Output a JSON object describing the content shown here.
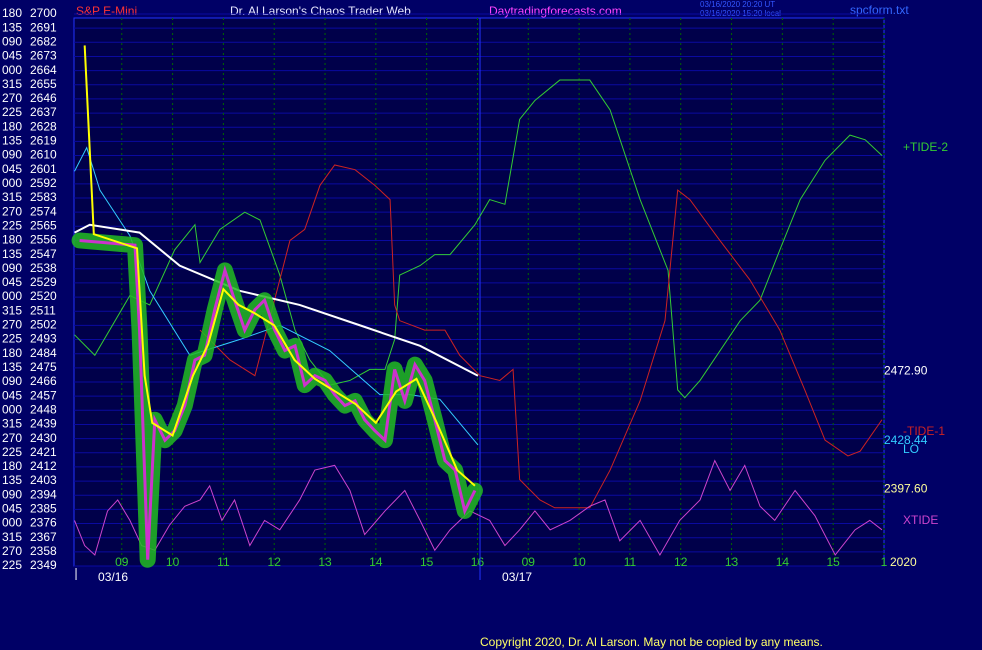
{
  "chart_data": {
    "type": "line",
    "title": "Dr. Al Larson's Chaos Trader Web",
    "symbol": "S&P E-Mini",
    "site": "Daytradingforecasts.com",
    "timestamp_ut": "03/16/2020 20:20 UT",
    "timestamp_local": "03/16/2020 15:20 local",
    "file": "spcform.txt",
    "copyright": "Copyright 2020, Dr. Al Larson. May not be copied by any means.",
    "year": "2020",
    "grid": true,
    "ylim": [
      2349,
      2700
    ],
    "yticks": [
      2700,
      2691,
      2682,
      2673,
      2664,
      2655,
      2646,
      2637,
      2628,
      2619,
      2610,
      2601,
      2592,
      2583,
      2574,
      2565,
      2556,
      2547,
      2538,
      2529,
      2520,
      2511,
      2502,
      2493,
      2484,
      2475,
      2466,
      2457,
      2448,
      2439,
      2430,
      2421,
      2412,
      2403,
      2394,
      2385,
      2376,
      2367,
      2358,
      2349
    ],
    "y_angle_labels": [
      "180",
      "135",
      "090",
      "045",
      "000",
      "315",
      "270",
      "225",
      "180",
      "135",
      "090",
      "045",
      "000",
      "315",
      "270",
      "225",
      "180",
      "135",
      "090",
      "045",
      "000",
      "315",
      "270",
      "225",
      "180",
      "135",
      "090",
      "045",
      "000",
      "315",
      "270",
      "225",
      "180",
      "135",
      "090",
      "045",
      "000",
      "315",
      "270",
      "225"
    ],
    "xlim": [
      -0.94,
      15.0
    ],
    "xticks": [
      {
        "value": 0,
        "label": "09"
      },
      {
        "value": 1,
        "label": "10"
      },
      {
        "value": 2,
        "label": "11"
      },
      {
        "value": 3,
        "label": "12"
      },
      {
        "value": 4,
        "label": "13"
      },
      {
        "value": 5,
        "label": "14"
      },
      {
        "value": 6,
        "label": "15"
      },
      {
        "value": 7,
        "label": "16"
      },
      {
        "value": 8,
        "label": "09"
      },
      {
        "value": 9,
        "label": "10"
      },
      {
        "value": 10,
        "label": "11"
      },
      {
        "value": 11,
        "label": "12"
      },
      {
        "value": 12,
        "label": "13"
      },
      {
        "value": 13,
        "label": "14"
      },
      {
        "value": 14,
        "label": "15"
      },
      {
        "value": 15,
        "label": "1"
      }
    ],
    "date_markers": [
      {
        "value": -0.9,
        "label": "03/16"
      },
      {
        "value": 7.05,
        "label": "03/17"
      }
    ],
    "series": [
      {
        "name": "+TIDE-2",
        "color": "#33cc33",
        "x": [
          -0.93,
          -0.53,
          0.16,
          0.55,
          1.04,
          1.44,
          1.54,
          1.93,
          2.42,
          2.72,
          3.11,
          3.41,
          3.7,
          4.09,
          4.49,
          4.88,
          5.18,
          5.37,
          5.47,
          5.87,
          6.16,
          6.46,
          6.95,
          7.24,
          7.54,
          7.83,
          8.13,
          8.62,
          9.21,
          9.61,
          10.2,
          10.75,
          10.94,
          11.08,
          11.38,
          12.17,
          12.56,
          12.95,
          13.35,
          13.84,
          14.33,
          14.63,
          14.96
        ],
        "values": [
          2496,
          2483,
          2521,
          2515,
          2550,
          2566,
          2542,
          2563,
          2574,
          2569,
          2534,
          2499,
          2480,
          2464,
          2467,
          2474,
          2474,
          2493,
          2534,
          2540,
          2547,
          2547,
          2566,
          2582,
          2579,
          2633,
          2645,
          2658,
          2658,
          2639,
          2582,
          2537,
          2461,
          2456,
          2467,
          2505,
          2518,
          2550,
          2582,
          2607,
          2623,
          2620,
          2610
        ]
      },
      {
        "name": "-TIDE-1",
        "color": "#cc2222",
        "x": [
          1.54,
          2.13,
          2.62,
          3.31,
          3.6,
          3.9,
          4.19,
          4.59,
          4.98,
          5.28,
          5.37,
          5.47,
          5.96,
          6.36,
          6.65,
          7.05,
          7.44,
          7.7,
          7.83,
          8.23,
          8.52,
          9.21,
          9.61,
          10.2,
          10.69,
          10.94,
          11.18,
          11.77,
          12.36,
          12.95,
          13.44,
          13.84,
          14.29,
          14.53,
          14.96
        ],
        "values": [
          2499,
          2480,
          2470,
          2556,
          2563,
          2591,
          2604,
          2601,
          2591,
          2582,
          2515,
          2505,
          2499,
          2499,
          2483,
          2470,
          2467,
          2474,
          2404,
          2391,
          2386,
          2386,
          2410,
          2454,
          2505,
          2588,
          2582,
          2556,
          2531,
          2499,
          2461,
          2429,
          2419,
          2422,
          2442
        ]
      },
      {
        "name": "XTIDE",
        "color": "#cc44cc",
        "x": [
          -0.93,
          -0.73,
          -0.53,
          -0.28,
          -0.08,
          0.16,
          0.39,
          0.65,
          0.94,
          1.24,
          1.54,
          1.73,
          1.97,
          2.22,
          2.52,
          2.81,
          3.11,
          3.5,
          3.8,
          4.19,
          4.49,
          4.78,
          5.18,
          5.57,
          5.87,
          6.16,
          6.46,
          6.85,
          7.24,
          7.54,
          7.83,
          8.13,
          8.43,
          8.82,
          9.21,
          9.51,
          9.8,
          10.2,
          10.59,
          10.98,
          11.38,
          11.67,
          11.97,
          12.26,
          12.56,
          12.85,
          13.25,
          13.64,
          14.04,
          14.43,
          14.72,
          14.96
        ],
        "values": [
          2378,
          2362,
          2356,
          2384,
          2391,
          2378,
          2362,
          2359,
          2375,
          2387,
          2391,
          2400,
          2378,
          2391,
          2362,
          2378,
          2372,
          2391,
          2410,
          2413,
          2397,
          2369,
          2384,
          2397,
          2378,
          2359,
          2372,
          2384,
          2378,
          2362,
          2372,
          2384,
          2372,
          2378,
          2387,
          2391,
          2365,
          2378,
          2356,
          2378,
          2391,
          2416,
          2397,
          2413,
          2387,
          2378,
          2397,
          2381,
          2356,
          2372,
          2378,
          2372
        ]
      },
      {
        "name": "LO",
        "color": "#33ccff",
        "end_label": {
          "value": 2428.44,
          "label": "2428.44"
        },
        "x": [
          -0.93,
          -0.69,
          -0.43,
          0.16,
          0.55,
          1.34,
          2.32,
          3.11,
          4.09,
          5.08,
          5.67,
          6.26,
          7.01
        ],
        "values": [
          2600,
          2615,
          2588,
          2559,
          2524,
          2483,
          2493,
          2502,
          2486,
          2458,
          2458,
          2455,
          2426
        ]
      },
      {
        "color": "#ffffff",
        "end_label": {
          "value": 2472.9,
          "label": "2472.90"
        },
        "x": [
          -0.93,
          -0.63,
          0.35,
          1.14,
          2.32,
          3.5,
          4.69,
          5.87,
          7.01
        ],
        "values": [
          2561,
          2566,
          2561,
          2540,
          2524,
          2515,
          2502,
          2489,
          2470
        ]
      },
      {
        "color": "#22bb22",
        "glow": true,
        "x": [
          -0.83,
          0.26,
          0.35,
          0.51,
          0.65,
          0.85,
          1.04,
          1.24,
          1.44,
          1.63,
          1.83,
          2.03,
          2.22,
          2.42,
          2.62,
          2.81,
          3.01,
          3.21,
          3.41,
          3.6,
          3.8,
          4.0,
          4.19,
          4.39,
          4.59,
          4.78,
          4.98,
          5.18,
          5.37,
          5.57,
          5.77,
          5.96,
          6.16,
          6.36,
          6.56,
          6.75,
          6.95
        ],
        "values": [
          2556,
          2553,
          2499,
          2353,
          2442,
          2429,
          2435,
          2451,
          2480,
          2483,
          2512,
          2537,
          2518,
          2499,
          2512,
          2518,
          2499,
          2486,
          2489,
          2464,
          2470,
          2467,
          2458,
          2451,
          2454,
          2442,
          2435,
          2429,
          2474,
          2454,
          2477,
          2467,
          2442,
          2416,
          2410,
          2384,
          2397
        ]
      },
      {
        "color": "#ffff00",
        "end_label": {
          "value": 2397.6,
          "label": "2397.60"
        },
        "x": [
          -0.73,
          -0.55,
          0.3,
          0.45,
          0.6,
          1.0,
          1.4,
          1.7,
          2.0,
          2.3,
          2.6,
          3.0,
          3.4,
          3.8,
          4.2,
          4.6,
          5.0,
          5.4,
          5.8,
          6.2,
          6.6,
          6.95
        ],
        "values": [
          2680,
          2560,
          2551,
          2470,
          2440,
          2432,
          2470,
          2490,
          2525,
          2515,
          2510,
          2502,
          2480,
          2468,
          2460,
          2452,
          2440,
          2460,
          2468,
          2440,
          2410,
          2400
        ]
      }
    ]
  }
}
